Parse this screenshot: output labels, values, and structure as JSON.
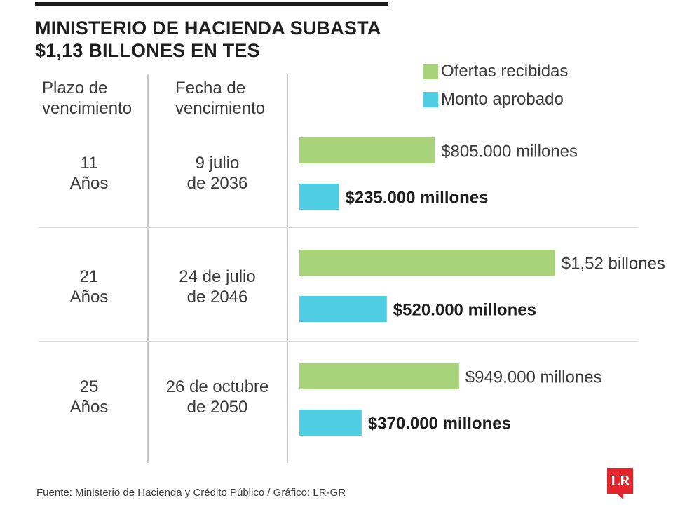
{
  "header": {
    "title_line1": "MINISTERIO DE HACIENDA SUBASTA",
    "title_line2": "$1,13 BILLONES EN TES"
  },
  "legend": [
    {
      "label": "Ofertas recibidas",
      "color": "#a9d37a"
    },
    {
      "label": "Monto aprobado",
      "color": "#4ecde3"
    }
  ],
  "columns": {
    "plazo": [
      "Plazo de",
      "vencimiento"
    ],
    "fecha": [
      "Fecha de",
      "vencimiento"
    ]
  },
  "rows": [
    {
      "plazo": [
        "11",
        "Años"
      ],
      "fecha": [
        "9 julio",
        "de 2036"
      ]
    },
    {
      "plazo": [
        "21",
        "Años"
      ],
      "fecha": [
        "24 de julio",
        "de 2046"
      ]
    },
    {
      "plazo": [
        "25",
        "Años"
      ],
      "fecha": [
        "26 de octubre",
        "de 2050"
      ]
    }
  ],
  "chart_data": {
    "type": "bar",
    "orientation": "horizontal",
    "unit": "millones de pesos",
    "categories": [
      "11 Años",
      "21 Años",
      "25 Años"
    ],
    "series": [
      {
        "name": "Ofertas recibidas",
        "color": "#a9d37a",
        "values": [
          805000,
          1520000,
          949000
        ],
        "labels": [
          "$805.000 millones",
          "$1,52 billones",
          "$949.000 millones"
        ],
        "bold": false
      },
      {
        "name": "Monto aprobado",
        "color": "#4ecde3",
        "values": [
          235000,
          520000,
          370000
        ],
        "labels": [
          "$235.000 millones",
          "$520.000 millones",
          "$370.000 millones"
        ],
        "bold": true
      }
    ]
  },
  "footer": {
    "source": "Fuente: Ministerio de Hacienda y Crédito Público / Gráfico: LR-GR"
  },
  "logo": {
    "text": "LR",
    "color": "#e3242b"
  }
}
